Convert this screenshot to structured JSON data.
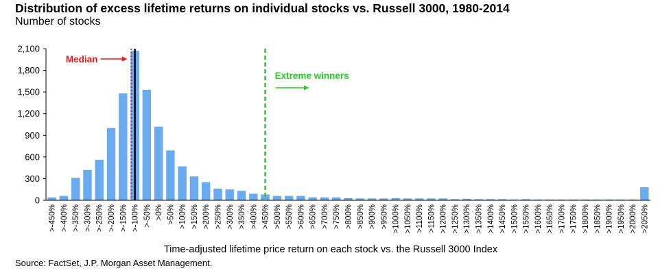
{
  "title": "Distribution of excess lifetime returns on individual stocks vs. Russell 3000, 1980-2014",
  "subtitle": "Number of stocks",
  "source": "Source: FactSet, J.P. Morgan Asset Management.",
  "colors": {
    "bar": "#6aaaf0",
    "median_text": "#e8191c",
    "median_line": "#d42020",
    "zero_line": "#000000",
    "winners": "#22cc22",
    "axis": "#000000"
  },
  "chart_data": {
    "type": "bar",
    "title": "Distribution of excess lifetime returns on individual stocks vs. Russell 3000, 1980-2014",
    "ylabel": "Number of stocks",
    "xlabel": "Time-adjusted lifetime price return on each stock vs. the Russell 3000 Index",
    "ylim": [
      0,
      2100
    ],
    "yticks": [
      "0",
      "300",
      "600",
      "900",
      "1,200",
      "1,500",
      "1,800",
      "2,100"
    ],
    "ytick_values": [
      0,
      300,
      600,
      900,
      1200,
      1500,
      1800,
      2100
    ],
    "grid": false,
    "categories": [
      ">-450%",
      ">-400%",
      ">-350%",
      ">-300%",
      ">-250%",
      ">-200%",
      ">-150%",
      ">-100%",
      ">-50%",
      ">0%",
      ">50%",
      ">100%",
      ">150%",
      ">200%",
      ">250%",
      ">300%",
      ">350%",
      ">400%",
      ">450%",
      ">500%",
      ">550%",
      ">600%",
      ">650%",
      ">700%",
      ">750%",
      ">800%",
      ">850%",
      ">900%",
      ">950%",
      ">1000%",
      ">1050%",
      ">1100%",
      ">1150%",
      ">1200%",
      ">1250%",
      ">1300%",
      ">1350%",
      ">1400%",
      ">1450%",
      ">1500%",
      ">1550%",
      ">1600%",
      ">1650%",
      ">1700%",
      ">1750%",
      ">1800%",
      ">1850%",
      ">1900%",
      ">1950%",
      ">2000%",
      ">2050%"
    ],
    "values": [
      40,
      60,
      310,
      420,
      560,
      1000,
      1480,
      2070,
      1530,
      1020,
      690,
      470,
      330,
      250,
      160,
      150,
      130,
      90,
      80,
      60,
      60,
      60,
      40,
      40,
      40,
      30,
      25,
      25,
      25,
      30,
      25,
      25,
      25,
      25,
      15,
      20,
      15,
      15,
      15,
      10,
      15,
      10,
      10,
      10,
      10,
      10,
      10,
      10,
      10,
      10,
      180
    ],
    "annotations": [
      {
        "text": "Median",
        "type": "vertical-line",
        "x_position": 7.2
      },
      {
        "text": "",
        "type": "vertical-line",
        "x_position": 7.5
      },
      {
        "text": "Extreme winners",
        "type": "vertical-line",
        "x_position": 18.5
      }
    ]
  }
}
